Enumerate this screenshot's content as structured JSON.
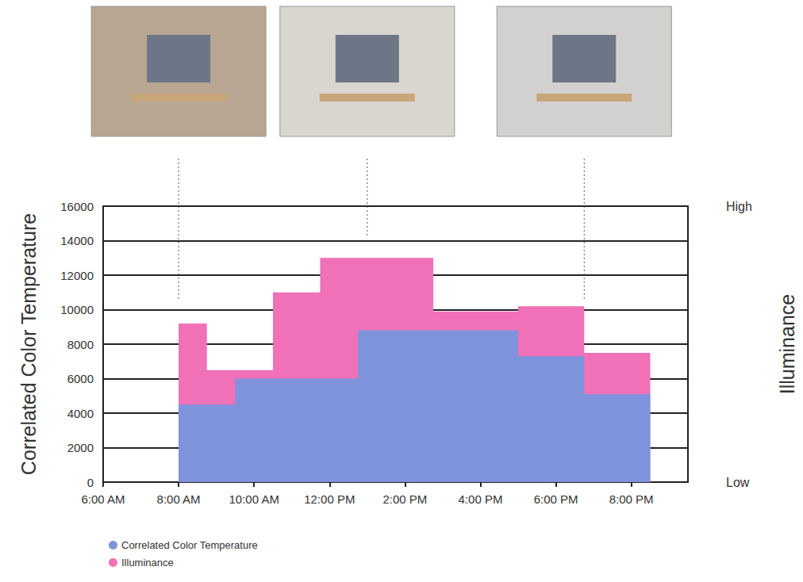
{
  "chart_data": {
    "type": "area",
    "line_style": "step",
    "x": [
      8,
      8.75,
      9.5,
      10.5,
      11.75,
      12.75,
      14.75,
      17,
      18.75,
      20.5
    ],
    "series": [
      {
        "name": "Correlated Color Temperature",
        "color": "#7f93dc",
        "values": [
          4500,
          4500,
          6000,
          6000,
          6000,
          8800,
          8800,
          7300,
          5100,
          5100
        ]
      },
      {
        "name": "Illuminance",
        "color": "#f071b8",
        "axis": "y2",
        "values": [
          9200,
          6500,
          6500,
          11000,
          13000,
          13000,
          9900,
          10200,
          7500,
          7500
        ]
      }
    ],
    "xlim": [
      6,
      21.5
    ],
    "xticks": [
      {
        "value": 6,
        "label": "6:00 AM"
      },
      {
        "value": 8,
        "label": "8:00 AM"
      },
      {
        "value": 10,
        "label": "10:00 AM"
      },
      {
        "value": 12,
        "label": "12:00 PM"
      },
      {
        "value": 14,
        "label": "2:00 PM"
      },
      {
        "value": 16,
        "label": "4:00 PM"
      },
      {
        "value": 18,
        "label": "6:00 PM"
      },
      {
        "value": 20,
        "label": "8:00 PM"
      }
    ],
    "ylim": [
      0,
      16000
    ],
    "yticks": [
      0,
      2000,
      4000,
      6000,
      8000,
      10000,
      12000,
      14000,
      16000
    ],
    "y2lim": [
      0,
      16000
    ],
    "y2ticks": [
      {
        "value": 0,
        "label": "Low"
      },
      {
        "value": 16000,
        "label": "High"
      }
    ],
    "ylabel": "Correlated Color Temperature",
    "y2label": "Illuminance",
    "grid": true,
    "legend": "lower left",
    "photo_markers": [
      {
        "x": 8,
        "y": 10500
      },
      {
        "x": 13,
        "y": 14300
      },
      {
        "x": 18.75,
        "y": 10500
      }
    ]
  }
}
